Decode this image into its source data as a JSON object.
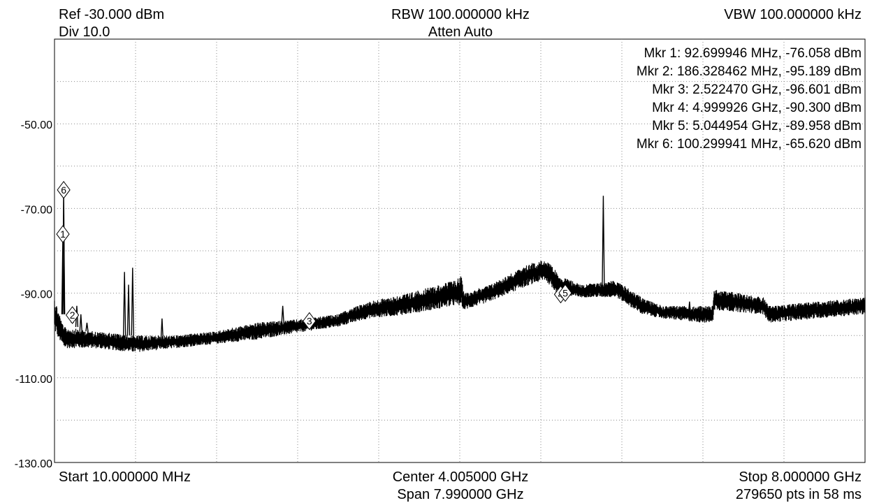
{
  "header": {
    "ref": "Ref -30.000 dBm",
    "div": "Div 10.0",
    "rbw": "RBW 100.000000 kHz",
    "atten": "Atten Auto",
    "vbw": "VBW 100.000000 kHz"
  },
  "footer": {
    "start": "Start 10.000000 MHz",
    "center": "Center 4.005000 GHz",
    "span": "Span 7.990000 GHz",
    "stop": "Stop 8.000000 GHz",
    "points": "279650 pts in 58 ms"
  },
  "chart_data": {
    "type": "line",
    "title": "",
    "xlabel": "",
    "ylabel": "",
    "x_unit": "MHz",
    "y_unit": "dBm",
    "xlim": [
      10,
      8000
    ],
    "ylim": [
      -130,
      -30
    ],
    "grid": true,
    "y_tick_labels": [
      "-50.00",
      "-70.00",
      "-90.00",
      "-110.00",
      "-130.00"
    ],
    "y_tick_values": [
      -50,
      -70,
      -90,
      -110,
      -130
    ],
    "trace_color": "#000000",
    "trace_envelope": [
      {
        "x": 10,
        "lo": -99,
        "hi": -91
      },
      {
        "x": 100,
        "lo": -103,
        "hi": -98
      },
      {
        "x": 400,
        "lo": -103,
        "hi": -99
      },
      {
        "x": 800,
        "lo": -104,
        "hi": -100
      },
      {
        "x": 1200,
        "lo": -103,
        "hi": -100
      },
      {
        "x": 1600,
        "lo": -102,
        "hi": -99
      },
      {
        "x": 2000,
        "lo": -101,
        "hi": -97
      },
      {
        "x": 2500,
        "lo": -99,
        "hi": -96
      },
      {
        "x": 2800,
        "lo": -98,
        "hi": -95
      },
      {
        "x": 3100,
        "lo": -96,
        "hi": -92
      },
      {
        "x": 3500,
        "lo": -95,
        "hi": -90
      },
      {
        "x": 3950,
        "lo": -93,
        "hi": -87
      },
      {
        "x": 4020,
        "lo": -93,
        "hi": -86
      },
      {
        "x": 4050,
        "lo": -94,
        "hi": -90
      },
      {
        "x": 4300,
        "lo": -92,
        "hi": -88
      },
      {
        "x": 4700,
        "lo": -88,
        "hi": -83
      },
      {
        "x": 4850,
        "lo": -87,
        "hi": -82
      },
      {
        "x": 5000,
        "lo": -91,
        "hi": -86
      },
      {
        "x": 5200,
        "lo": -91,
        "hi": -88
      },
      {
        "x": 5550,
        "lo": -91,
        "hi": -87
      },
      {
        "x": 5800,
        "lo": -95,
        "hi": -91
      },
      {
        "x": 6000,
        "lo": -96,
        "hi": -93
      },
      {
        "x": 6400,
        "lo": -97,
        "hi": -93
      },
      {
        "x": 6500,
        "lo": -97,
        "hi": -93
      },
      {
        "x": 6510,
        "lo": -94,
        "hi": -89
      },
      {
        "x": 7000,
        "lo": -95,
        "hi": -91
      },
      {
        "x": 7050,
        "lo": -97,
        "hi": -93
      },
      {
        "x": 8000,
        "lo": -95,
        "hi": -91
      }
    ],
    "spurs": [
      {
        "x": 92.7,
        "base": -95,
        "peak": -76.058
      },
      {
        "x": 100.3,
        "base": -95,
        "peak": -65.62
      },
      {
        "x": 186.3,
        "base": -97,
        "peak": -95.189
      },
      {
        "x": 230,
        "base": -98,
        "peak": -93
      },
      {
        "x": 270,
        "base": -99,
        "peak": -95
      },
      {
        "x": 330,
        "base": -99,
        "peak": -97
      },
      {
        "x": 700,
        "base": -100,
        "peak": -85
      },
      {
        "x": 740,
        "base": -100,
        "peak": -88
      },
      {
        "x": 780,
        "base": -100,
        "peak": -84
      },
      {
        "x": 1070,
        "base": -101,
        "peak": -96
      },
      {
        "x": 2260,
        "base": -97,
        "peak": -93
      },
      {
        "x": 5420,
        "base": -89,
        "peak": -67
      },
      {
        "x": 6270,
        "base": -95,
        "peak": -92
      }
    ],
    "markers": [
      {
        "id": "1",
        "freq_mhz": 92.699946,
        "level_dbm": -76.058,
        "label": "Mkr 1: 92.699946 MHz, -76.058 dBm"
      },
      {
        "id": "2",
        "freq_mhz": 186.328462,
        "level_dbm": -95.189,
        "label": "Mkr 2: 186.328462 MHz, -95.189 dBm"
      },
      {
        "id": "3",
        "freq_mhz": 2522.47,
        "level_dbm": -96.601,
        "label": "Mkr 3: 2.522470 GHz, -96.601 dBm"
      },
      {
        "id": "4",
        "freq_mhz": 4999.926,
        "level_dbm": -90.3,
        "label": "Mkr 4: 4.999926 GHz, -90.300 dBm"
      },
      {
        "id": "5",
        "freq_mhz": 5044.954,
        "level_dbm": -89.958,
        "label": "Mkr 5: 5.044954 GHz, -89.958 dBm"
      },
      {
        "id": "6",
        "freq_mhz": 100.299941,
        "level_dbm": -65.62,
        "label": "Mkr 6: 100.299941 MHz, -65.620 dBm"
      }
    ]
  }
}
